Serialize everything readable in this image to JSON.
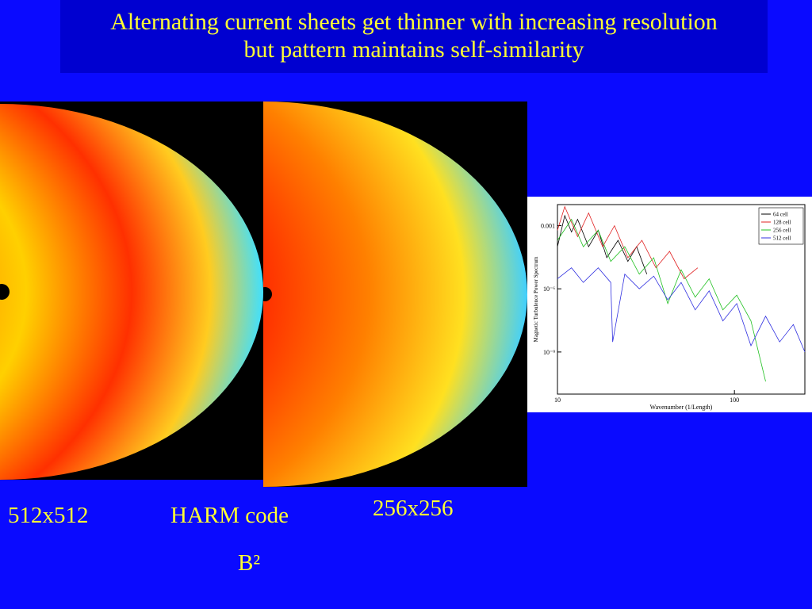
{
  "header": {
    "title_lines": [
      "Alternating current sheets get thinner with increasing resolution",
      "but pattern maintains self-similarity"
    ]
  },
  "labels": {
    "left_resolution": "512x512",
    "code": "HARM code",
    "right_resolution": "256x256",
    "quantity": "B²"
  },
  "chart_data": {
    "type": "line",
    "xlabel": "Wavenumber (1/Length)",
    "ylabel": "Magnetic Turbulence Power Spectrum",
    "xscale": "log",
    "yscale": "log",
    "xlim": [
      10,
      250
    ],
    "ylim": [
      1e-11,
      0.01
    ],
    "xticks": [
      10,
      100
    ],
    "yticks": [
      {
        "value": 0.001,
        "label": "0.001"
      },
      {
        "value": 1e-06,
        "label": "10⁻⁶"
      },
      {
        "value": 1e-09,
        "label": "10⁻⁹"
      }
    ],
    "legend": "upper right",
    "series": [
      {
        "name": "64 cell",
        "color": "#000000",
        "x": [
          10,
          11,
          12,
          13,
          15,
          17,
          19,
          22,
          25,
          28,
          32
        ],
        "values": [
          0.0001,
          0.003,
          0.0005,
          0.002,
          0.0001,
          0.0006,
          3e-05,
          0.0002,
          2e-05,
          0.0001,
          5e-06
        ]
      },
      {
        "name": "128 cell",
        "color": "#e02020",
        "x": [
          10,
          11,
          13,
          15,
          18,
          21,
          25,
          30,
          36,
          43,
          52,
          62
        ],
        "values": [
          0.0006,
          0.008,
          0.0003,
          0.004,
          0.0001,
          0.001,
          3e-05,
          0.0002,
          1e-05,
          6e-05,
          3e-06,
          1e-05
        ]
      },
      {
        "name": "256 cell",
        "color": "#20c020",
        "x": [
          10,
          12,
          14,
          17,
          20,
          24,
          29,
          35,
          42,
          50,
          60,
          72,
          86,
          103,
          124,
          150
        ],
        "values": [
          0.0002,
          0.002,
          0.0001,
          0.0006,
          2e-05,
          0.0001,
          5e-06,
          3e-05,
          2e-07,
          8e-06,
          4e-07,
          3e-06,
          1e-07,
          5e-07,
          3e-08,
          4e-11
        ]
      },
      {
        "name": "512 cell",
        "color": "#3030e0",
        "x": [
          10,
          12,
          14,
          17,
          20,
          20.5,
          24,
          29,
          35,
          42,
          50,
          60,
          72,
          86,
          103,
          124,
          150,
          180,
          215,
          250
        ],
        "values": [
          3e-06,
          1e-05,
          2e-06,
          1e-05,
          2e-06,
          3e-09,
          5e-06,
          1e-06,
          4e-06,
          3e-07,
          2e-06,
          1e-07,
          8e-07,
          3e-08,
          2e-07,
          2e-09,
          5e-08,
          3e-09,
          2e-08,
          1e-09
        ]
      }
    ]
  }
}
